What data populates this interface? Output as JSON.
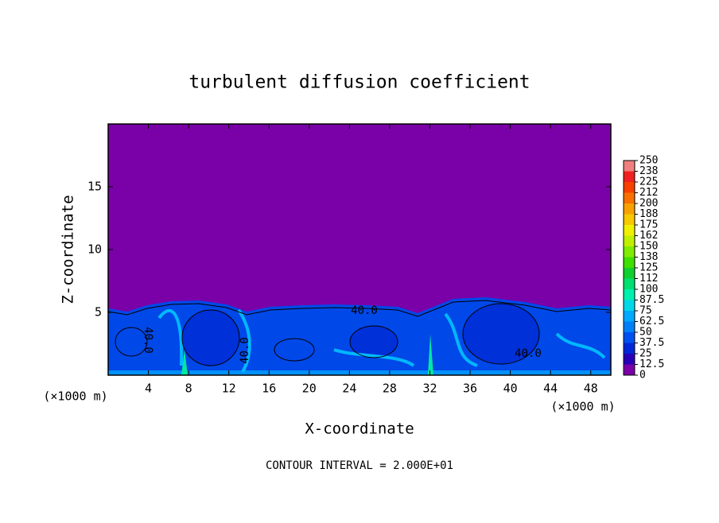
{
  "chart_data": {
    "type": "contour",
    "title": "turbulent diffusion coefficient",
    "xlabel": "X-coordinate",
    "ylabel": "Z-coordinate",
    "unit_label": "(×1000 m)",
    "footer": "CONTOUR INTERVAL = 2.000E+01",
    "contour_label": "40.0",
    "background_color": "#7a00a8",
    "xlim": [
      0,
      50
    ],
    "xticks": [
      4,
      8,
      12,
      16,
      20,
      24,
      28,
      32,
      36,
      40,
      44,
      48
    ],
    "ylim": [
      0,
      20
    ],
    "yticks": [
      5,
      10,
      15
    ],
    "colorbar_levels": [
      0,
      12.5,
      25,
      37.5,
      50,
      62.5,
      75,
      87.5,
      100,
      {
        "value": 112.5,
        "label": "112"
      },
      125,
      {
        "value": 137.5,
        "label": "138"
      },
      150,
      {
        "value": 162.5,
        "label": "162"
      },
      175,
      {
        "value": 187.5,
        "label": "188"
      },
      200,
      {
        "value": 212.5,
        "label": "212"
      },
      225,
      {
        "value": 237.5,
        "label": "238"
      },
      250
    ],
    "colorbar_colors": [
      "#7a00a8",
      "#2800b8",
      "#0028d8",
      "#0050f0",
      "#0080f8",
      "#00aaff",
      "#00d8e8",
      "#00f0b0",
      "#00e070",
      "#10d030",
      "#40e000",
      "#80ec00",
      "#c0f000",
      "#f0f000",
      "#f8c800",
      "#f8a000",
      "#f87000",
      "#f84000",
      "#f02020",
      "#f08080"
    ]
  }
}
